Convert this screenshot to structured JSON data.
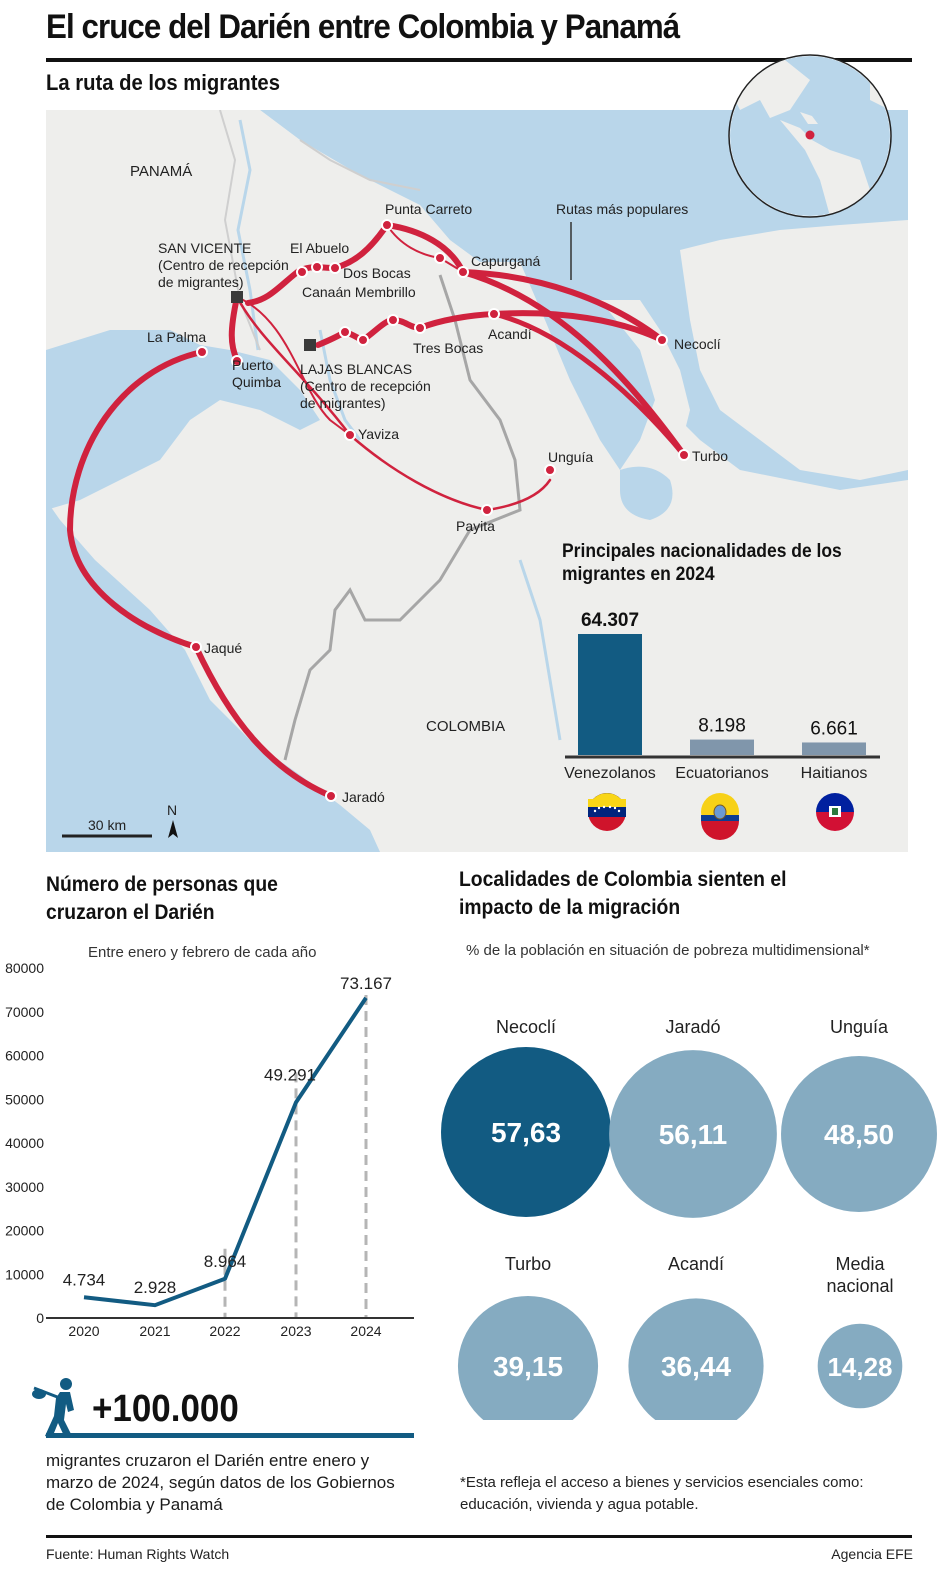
{
  "title": "El cruce del Darién entre Colombia y Panamá",
  "map": {
    "title": "La ruta de los migrantes",
    "countries": [
      "PANAMÁ",
      "COLOMBIA"
    ],
    "route_label": "Rutas más populares",
    "reception_centers": [
      {
        "name": "SAN VICENTE",
        "note1": "(Centro de recepción",
        "note2": "de migrantes)"
      },
      {
        "name": "LAJAS BLANCAS",
        "note1": "(Centro de recepción",
        "note2": "de migrantes)"
      }
    ],
    "places": [
      "Punta Carreto",
      "El Abuelo",
      "Dos Bocas",
      "Canaán Membrillo",
      "Capurganá",
      "Necoclí",
      "Acandí",
      "Tres Bocas",
      "La Palma",
      "Puerto",
      "Quimba",
      "Yaviza",
      "Unguía",
      "Turbo",
      "Payita",
      "Jaqué",
      "Jaradó"
    ],
    "scale": "30 km",
    "north": "N",
    "colors": {
      "water": "#b9d6ea",
      "land": "#eeeeec",
      "route": "#d0223e",
      "border": "#a6a6a6"
    }
  },
  "nationalities": {
    "title_line1": "Principales nacionalidades de los",
    "title_line2": "migrantes en 2024",
    "flags": [
      "venezuela-flag",
      "ecuador-flag",
      "haiti-flag"
    ]
  },
  "chart_data": [
    {
      "type": "bar",
      "categories": [
        "Venezolanos",
        "Ecuatorianos",
        "Haitianos"
      ],
      "values": [
        64307,
        8198,
        6661
      ],
      "value_labels": [
        "64.307",
        "8.198",
        "6.661"
      ],
      "title": "Principales nacionalidades de los migrantes en 2024",
      "colors": [
        "#125b82",
        "#8096ab",
        "#8096ab"
      ]
    },
    {
      "type": "line",
      "title": "Número de personas que cruzaron el Darién",
      "subtitle": "Entre enero y febrero de cada año",
      "x": [
        "2020",
        "2021",
        "2022",
        "2023",
        "2024"
      ],
      "values": [
        4734,
        2928,
        8964,
        49291,
        73167
      ],
      "value_labels": [
        "4.734",
        "2.928",
        "8.964",
        "49.291",
        "73.167"
      ],
      "yticks": [
        "0",
        "10000",
        "20000",
        "30000",
        "40000",
        "50000",
        "60000",
        "70000",
        "80000"
      ],
      "ylim": [
        0,
        80000
      ],
      "color": "#125b82",
      "grid": false
    },
    {
      "type": "bubble",
      "title": "Localidades de Colombia sienten el impacto de la migración",
      "subtitle": "% de la población en situación de pobreza multidimensional*",
      "categories": [
        "Necoclí",
        "Jaradó",
        "Unguía",
        "Turbo",
        "Acandí",
        "Media nacional"
      ],
      "values": [
        57.63,
        56.11,
        48.5,
        39.15,
        36.44,
        14.28
      ],
      "value_labels": [
        "57,63",
        "56,11",
        "48,50",
        "39,15",
        "36,44",
        "14,28"
      ],
      "colors": [
        "#125b82",
        "#85abc1",
        "#85abc1",
        "#85abc1",
        "#85abc1",
        "#85abc1"
      ]
    }
  ],
  "line_section": {
    "title_line1": "Número de personas que",
    "title_line2": "cruzaron el Darién",
    "subtitle": "Entre enero y febrero de cada año"
  },
  "highlight": {
    "number": "+100.000",
    "text": "migrantes cruzaron el Darién entre enero y marzo de 2024, según datos de los Gobiernos de Colombia y Panamá",
    "icon": "migrant-walking-icon"
  },
  "bubble_section": {
    "title_line1": "Localidades de Colombia sienten el",
    "title_line2": "impacto de la migración",
    "subtitle": "% de la población en situación de pobreza multidimensional*",
    "footnote": "*Esta refleja el acceso a bienes y servicios esenciales como: educación, vivienda y agua potable."
  },
  "footer": {
    "source": "Fuente: Human Rights Watch",
    "agency": "Agencia EFE"
  }
}
